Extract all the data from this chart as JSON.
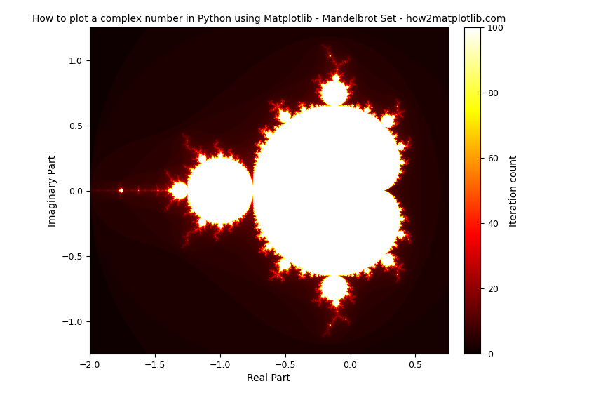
{
  "title": "How to plot a complex number in Python using Matplotlib - Mandelbrot Set - how2matplotlib.com",
  "xlabel": "Real Part",
  "ylabel": "Imaginary Part",
  "colorbar_label": "Iteration count",
  "x_min": -2.0,
  "x_max": 0.75,
  "y_min": -1.25,
  "y_max": 1.25,
  "max_iter": 100,
  "resolution": 1000,
  "cmap": "hot",
  "title_fontsize": 10,
  "label_fontsize": 10,
  "tick_fontsize": 9,
  "background_color": "#ffffff",
  "fig_width": 8.4,
  "fig_height": 5.6,
  "dpi": 100
}
